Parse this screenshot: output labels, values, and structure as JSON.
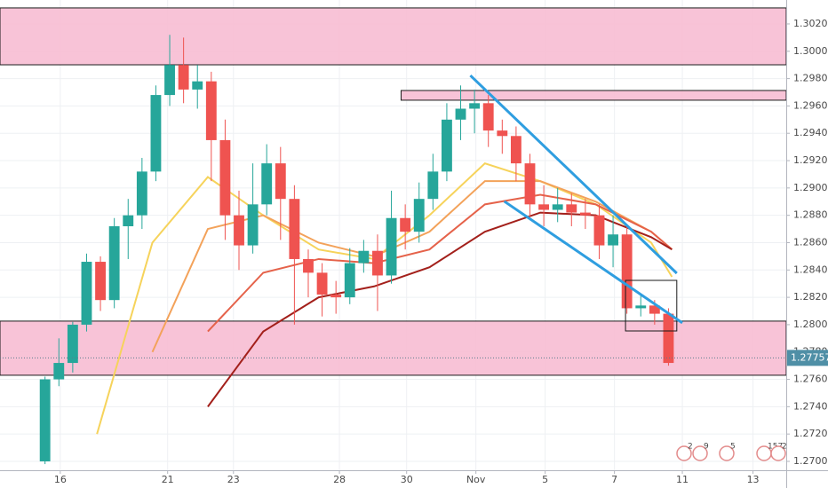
{
  "chart_data": {
    "type": "candlestick",
    "xlim": [
      0,
      113.5
    ],
    "xticks": [
      {
        "value": 8.7,
        "label": "16"
      },
      {
        "value": 24.2,
        "label": "21"
      },
      {
        "value": 33.7,
        "label": "23"
      },
      {
        "value": 49,
        "label": "28"
      },
      {
        "value": 58.7,
        "label": "30"
      },
      {
        "value": 68.7,
        "label": "Nov"
      },
      {
        "value": 78.7,
        "label": "5"
      },
      {
        "value": 88.7,
        "label": "7"
      },
      {
        "value": 98.5,
        "label": "11"
      },
      {
        "value": 108.7,
        "label": "13"
      }
    ],
    "ylim": [
      1.26935,
      1.30375
    ],
    "yticks": [
      {
        "value": 1.27,
        "label": "1.27000"
      },
      {
        "value": 1.272,
        "label": "1.27200"
      },
      {
        "value": 1.274,
        "label": "1.27400"
      },
      {
        "value": 1.276,
        "label": "1.27600"
      },
      {
        "value": 1.278,
        "label": "1.27800"
      },
      {
        "value": 1.28,
        "label": "1.28000"
      },
      {
        "value": 1.282,
        "label": "1.28200"
      },
      {
        "value": 1.284,
        "label": "1.28400"
      },
      {
        "value": 1.286,
        "label": "1.28600"
      },
      {
        "value": 1.288,
        "label": "1.28800"
      },
      {
        "value": 1.29,
        "label": "1.29000"
      },
      {
        "value": 1.292,
        "label": "1.29200"
      },
      {
        "value": 1.294,
        "label": "1.29400"
      },
      {
        "value": 1.296,
        "label": "1.29600"
      },
      {
        "value": 1.298,
        "label": "1.29800"
      },
      {
        "value": 1.3,
        "label": "1.30000"
      },
      {
        "value": 1.302,
        "label": "1.30200"
      }
    ],
    "grid": true,
    "up_color": "#26a69a",
    "down_color": "#ef5350",
    "candles": {
      "x": [
        6.5,
        8.5,
        10.5,
        12.5,
        14.5,
        16.5,
        18.5,
        20.5,
        22.5,
        24.5,
        26.5,
        28.5,
        30.5,
        32.5,
        34.5,
        36.5,
        38.5,
        40.5,
        42.5,
        44.5,
        46.5,
        48.5,
        50.5,
        52.5,
        54.5,
        56.5,
        58.5,
        60.5,
        62.5,
        64.5,
        66.5,
        68.5,
        70.5,
        72.5,
        74.5,
        76.5,
        78.5,
        80.5,
        82.5,
        84.5,
        86.5,
        88.5,
        90.5,
        92.5,
        94.5,
        96.5
      ],
      "open": [
        1.27,
        1.276,
        1.2772,
        1.28,
        1.2846,
        1.2818,
        1.2872,
        1.288,
        1.2912,
        1.2968,
        1.299,
        1.2972,
        1.2978,
        1.2935,
        1.288,
        1.2858,
        1.2888,
        1.2918,
        1.2892,
        1.2848,
        1.2838,
        1.2822,
        1.282,
        1.2845,
        1.2854,
        1.2836,
        1.2878,
        1.2868,
        1.2892,
        1.2912,
        1.295,
        1.2958,
        1.2962,
        1.2942,
        1.2938,
        1.2918,
        1.2888,
        1.2884,
        1.2888,
        1.2882,
        1.288,
        1.2858,
        1.2866,
        1.2812,
        1.2814,
        1.2808
      ],
      "high": [
        1.2762,
        1.279,
        1.2802,
        1.2852,
        1.285,
        1.2878,
        1.2892,
        1.2922,
        1.2975,
        1.3012,
        1.301,
        1.299,
        1.2985,
        1.295,
        1.2898,
        1.2918,
        1.2932,
        1.293,
        1.2902,
        1.2855,
        1.2845,
        1.2832,
        1.2856,
        1.2862,
        1.2866,
        1.2898,
        1.2888,
        1.2904,
        1.2925,
        1.2962,
        1.2975,
        1.2972,
        1.2968,
        1.295,
        1.2945,
        1.2925,
        1.2902,
        1.29,
        1.2896,
        1.2892,
        1.2888,
        1.288,
        1.2872,
        1.2822,
        1.2818,
        1.2812
      ],
      "low": [
        1.2698,
        1.2755,
        1.2765,
        1.2795,
        1.281,
        1.2812,
        1.2848,
        1.287,
        1.2905,
        1.296,
        1.2962,
        1.2958,
        1.2905,
        1.2862,
        1.284,
        1.2852,
        1.288,
        1.2862,
        1.28,
        1.282,
        1.2806,
        1.2808,
        1.2815,
        1.2838,
        1.281,
        1.283,
        1.2855,
        1.286,
        1.2884,
        1.2905,
        1.2935,
        1.294,
        1.293,
        1.2925,
        1.2905,
        1.2878,
        1.2872,
        1.2875,
        1.2872,
        1.287,
        1.2848,
        1.2842,
        1.2808,
        1.2806,
        1.28,
        1.277
      ],
      "close": [
        1.276,
        1.2772,
        1.28,
        1.2846,
        1.2818,
        1.2872,
        1.288,
        1.2912,
        1.2968,
        1.299,
        1.2972,
        1.2978,
        1.2935,
        1.288,
        1.2858,
        1.2888,
        1.2918,
        1.2892,
        1.2848,
        1.2838,
        1.2822,
        1.282,
        1.2845,
        1.2854,
        1.2836,
        1.2878,
        1.2868,
        1.2892,
        1.2912,
        1.295,
        1.2958,
        1.2962,
        1.2942,
        1.2938,
        1.2918,
        1.2888,
        1.2884,
        1.2888,
        1.2882,
        1.288,
        1.2858,
        1.2866,
        1.2812,
        1.2814,
        1.2808,
        1.2772
      ]
    },
    "ribbon_x": [
      14,
      22,
      30,
      38,
      46,
      54,
      62,
      70,
      78,
      86,
      94,
      97
    ],
    "series": [
      {
        "color": "#f6d35b",
        "values": [
          1.272,
          1.286,
          1.2908,
          1.288,
          1.2855,
          1.2848,
          1.288,
          1.2918,
          1.2905,
          1.2888,
          1.286,
          1.2835
        ]
      },
      {
        "color": "#f3a25a",
        "values": [
          null,
          1.278,
          1.287,
          1.288,
          1.286,
          1.285,
          1.2868,
          1.2905,
          1.2905,
          1.289,
          1.2868,
          1.2855
        ]
      },
      {
        "color": "#e5624a",
        "values": [
          null,
          null,
          1.2795,
          1.2838,
          1.2848,
          1.2845,
          1.2855,
          1.2888,
          1.2895,
          1.2888,
          1.2868,
          1.2855
        ]
      },
      {
        "color": "#a3201b",
        "values": [
          null,
          null,
          1.274,
          1.2795,
          1.282,
          1.2828,
          1.2842,
          1.2868,
          1.2882,
          1.288,
          1.2864,
          1.2855
        ]
      }
    ],
    "zones": [
      {
        "top": 1.30317,
        "bottom": 1.29901
      },
      {
        "top": 1.29713,
        "bottom": 1.29642,
        "x0": 57.9
      },
      {
        "top": 1.28026,
        "bottom": 1.2763
      }
    ],
    "box": {
      "x0": 90.3,
      "x1": 97.7,
      "top": 1.28324,
      "bottom": 1.27954
    },
    "trendlines": [
      {
        "x": [
          67.9,
          97.7
        ],
        "y": [
          1.29823,
          1.28376
        ]
      },
      {
        "x": [
          72.8,
          98.5
        ],
        "y": [
          1.28902,
          1.28013
        ]
      }
    ],
    "last_price": {
      "value": 1.27757,
      "label": "1.27757"
    },
    "badges": [
      "2",
      "9",
      "5",
      "157",
      "2"
    ]
  }
}
